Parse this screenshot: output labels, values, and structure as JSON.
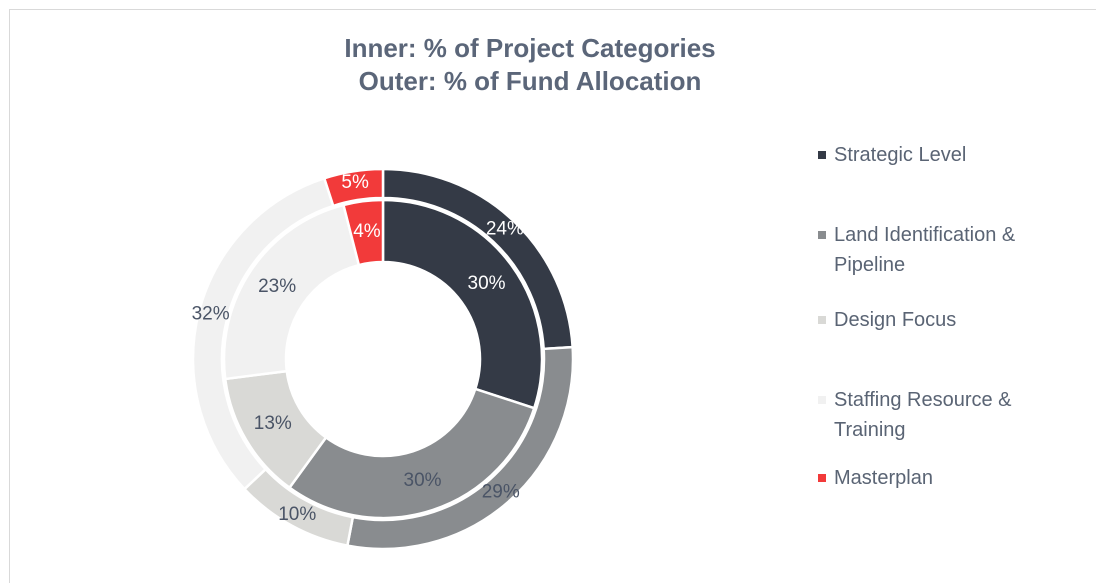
{
  "chart_data": {
    "type": "donut",
    "title": [
      "Inner: % of Project Categories",
      "Outer: % of Fund Allocation"
    ],
    "categories": [
      "Strategic Level",
      "Land Identification & Pipeline",
      "Design Focus",
      "Staffing Resource & Training",
      "Masterplan"
    ],
    "colors": [
      "#343a46",
      "#898c8f",
      "#d9d9d6",
      "#f1f1f1",
      "#f23a3a"
    ],
    "series": [
      {
        "values": [
          30,
          30,
          13,
          23,
          4
        ],
        "value_labels": [
          "30%",
          "30%",
          "13%",
          "23%",
          "4%"
        ]
      },
      {
        "values": [
          24,
          29,
          10,
          32,
          5
        ],
        "value_labels": [
          "24%",
          "29%",
          "10%",
          "32%",
          "5%"
        ]
      }
    ],
    "legend": "right"
  }
}
